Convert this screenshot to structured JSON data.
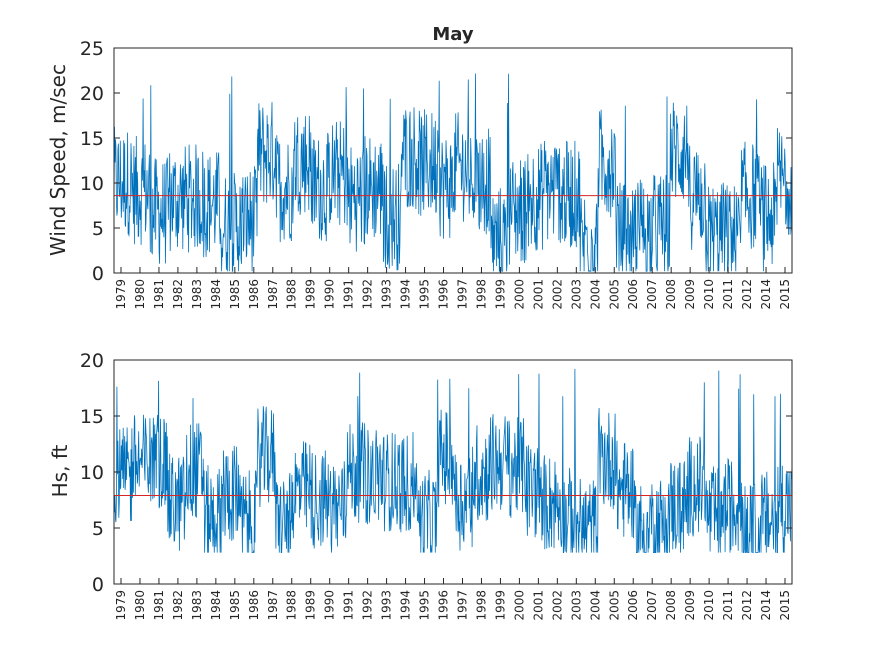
{
  "chart_data": [
    {
      "type": "line",
      "title": "May",
      "xlabel": "",
      "ylabel": "Wind Speed, m/sec",
      "ylim": [
        0,
        25
      ],
      "y_ticks": [
        "0",
        "5",
        "10",
        "15",
        "20",
        "25"
      ],
      "x_tick_labels": [
        "1979",
        "1980",
        "1981",
        "1982",
        "1983",
        "1984",
        "1985",
        "1986",
        "1987",
        "1988",
        "1989",
        "1990",
        "1991",
        "1992",
        "1993",
        "1994",
        "1995",
        "1996",
        "1997",
        "1998",
        "1999",
        "2000",
        "2001",
        "2002",
        "2003",
        "2004",
        "2005",
        "2006",
        "2007",
        "2008",
        "2009",
        "2010",
        "2011",
        "2012",
        "2014",
        "2015"
      ],
      "reference_line": 8.6,
      "reference_color": "#d62728",
      "series_color": "#0072bd",
      "grid": false,
      "series": [
        {
          "values_note": "",
          "min": 0.2,
          "max": 22.5
        }
      ]
    },
    {
      "type": "line",
      "title": "",
      "xlabel": "",
      "ylabel": "Hs, ft",
      "ylim": [
        0,
        20
      ],
      "y_ticks": [
        "0",
        "5",
        "10",
        "15",
        "20"
      ],
      "x_tick_labels": [
        "1979",
        "1980",
        "1981",
        "1982",
        "1983",
        "1984",
        "1985",
        "1986",
        "1987",
        "1988",
        "1989",
        "1990",
        "1991",
        "1992",
        "1993",
        "1994",
        "1995",
        "1996",
        "1997",
        "1998",
        "1999",
        "2000",
        "2001",
        "2002",
        "2003",
        "2004",
        "2005",
        "2006",
        "2007",
        "2008",
        "2009",
        "2010",
        "2011",
        "2012",
        "2014",
        "2015"
      ],
      "reference_line": 7.9,
      "reference_color": "#d62728",
      "series_color": "#0072bd",
      "grid": false,
      "series": [
        {
          "values_note": "",
          "min": 2.8,
          "max": 19.3
        }
      ]
    }
  ]
}
